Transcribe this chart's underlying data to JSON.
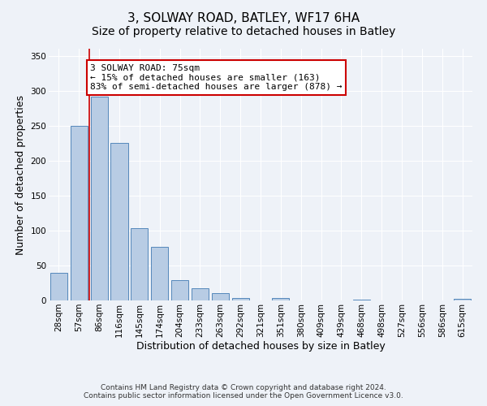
{
  "title": "3, SOLWAY ROAD, BATLEY, WF17 6HA",
  "subtitle": "Size of property relative to detached houses in Batley",
  "xlabel": "Distribution of detached houses by size in Batley",
  "ylabel": "Number of detached properties",
  "bar_labels": [
    "28sqm",
    "57sqm",
    "86sqm",
    "116sqm",
    "145sqm",
    "174sqm",
    "204sqm",
    "233sqm",
    "263sqm",
    "292sqm",
    "321sqm",
    "351sqm",
    "380sqm",
    "409sqm",
    "439sqm",
    "468sqm",
    "498sqm",
    "527sqm",
    "556sqm",
    "586sqm",
    "615sqm"
  ],
  "bar_values": [
    40,
    250,
    292,
    225,
    103,
    77,
    29,
    18,
    10,
    4,
    0,
    3,
    0,
    0,
    0,
    1,
    0,
    0,
    0,
    0,
    2
  ],
  "bar_color": "#b8cce4",
  "bar_edge_color": "#5588bb",
  "vline_x": 1.5,
  "vline_color": "#cc0000",
  "annotation_title": "3 SOLWAY ROAD: 75sqm",
  "annotation_line1": "← 15% of detached houses are smaller (163)",
  "annotation_line2": "83% of semi-detached houses are larger (878) →",
  "annotation_box_color": "#ffffff",
  "annotation_box_edge": "#cc0000",
  "ylim": [
    0,
    360
  ],
  "yticks": [
    0,
    50,
    100,
    150,
    200,
    250,
    300,
    350
  ],
  "footer1": "Contains HM Land Registry data © Crown copyright and database right 2024.",
  "footer2": "Contains public sector information licensed under the Open Government Licence v3.0.",
  "title_fontsize": 11,
  "xlabel_fontsize": 9,
  "ylabel_fontsize": 9,
  "tick_fontsize": 7.5,
  "annotation_fontsize": 8,
  "footer_fontsize": 6.5,
  "bg_color": "#eef2f8"
}
